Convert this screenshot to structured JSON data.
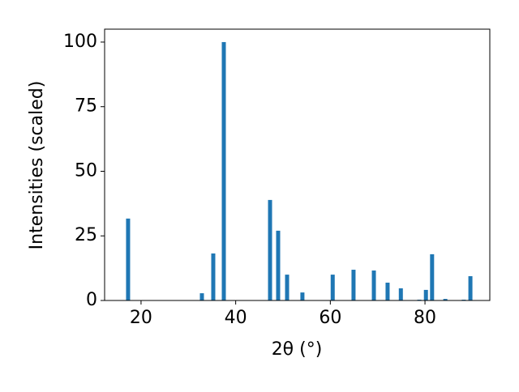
{
  "chart_data": {
    "type": "bar",
    "x_label": "2θ (°)",
    "y_label": "Intensities (scaled)",
    "x": [
      17.26,
      32.86,
      35.26,
      37.49,
      47.26,
      48.97,
      50.86,
      54.1,
      60.5,
      64.9,
      69.2,
      72.1,
      74.9,
      78.8,
      80.2,
      81.5,
      84.3,
      88.2,
      89.6
    ],
    "values": [
      31.7,
      2.8,
      18.2,
      100,
      38.9,
      27,
      10,
      3.1,
      10,
      11.9,
      11.6,
      6.9,
      4.7,
      0.3,
      4.1,
      17.9,
      0.6,
      0.3,
      9.4
    ],
    "color": "#1f77b4",
    "xlim": [
      12.3,
      93.7
    ],
    "xticks": [
      20,
      40,
      60,
      80
    ],
    "ylim": [
      0,
      105
    ],
    "yticks": [
      0,
      25,
      50,
      75,
      100
    ],
    "grid": false
  }
}
